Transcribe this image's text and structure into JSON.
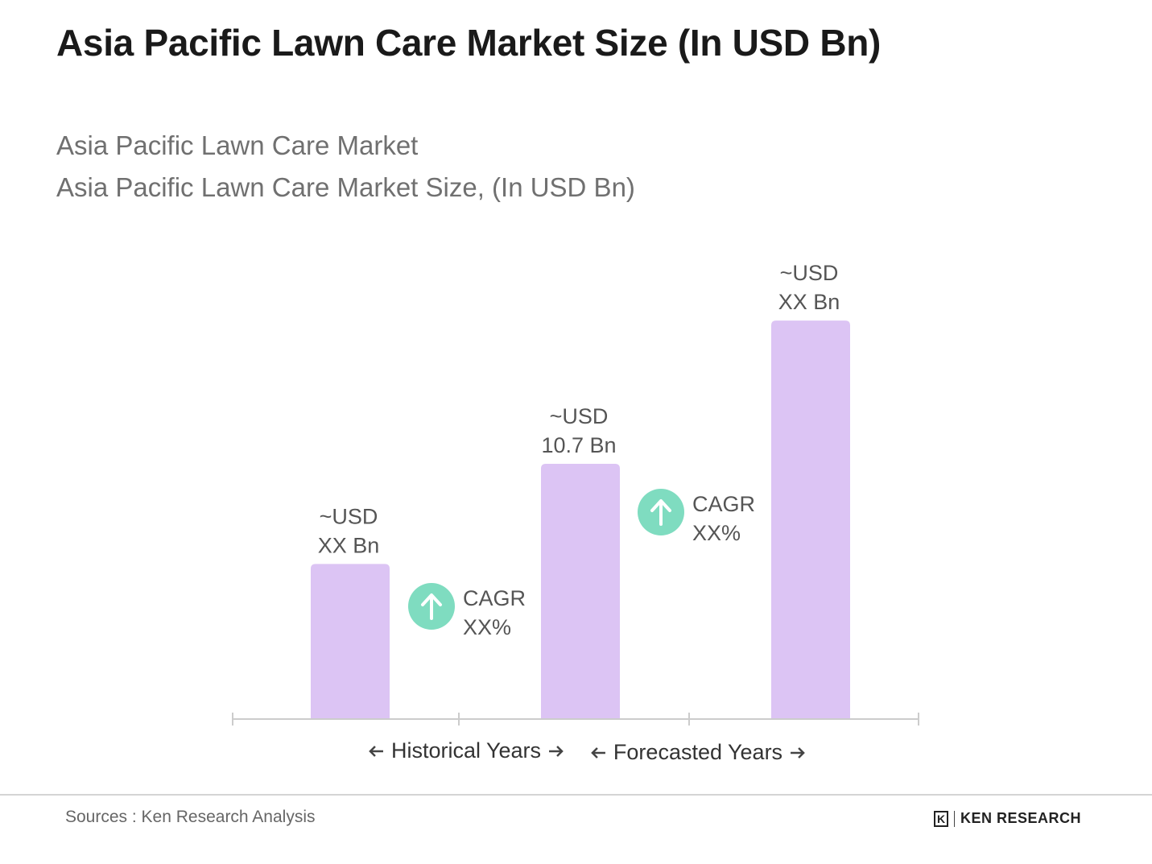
{
  "header": {
    "title": "Asia Pacific Lawn Care Market Size (In USD Bn)",
    "subtitle_line1": "Asia Pacific Lawn Care Market",
    "subtitle_line2": "Asia Pacific Lawn Care Market Size, (In USD Bn)"
  },
  "chart_data": {
    "type": "bar",
    "categories": [
      "",
      "",
      ""
    ],
    "values": [
      6.5,
      10.7,
      16.7
    ],
    "value_labels": [
      [
        "~USD",
        "XX Bn"
      ],
      [
        "~USD",
        "10.7 Bn"
      ],
      [
        "~USD",
        "XX Bn"
      ]
    ],
    "ylim": [
      0,
      19
    ],
    "grid": false,
    "cagr_annotations": [
      {
        "label": "CAGR",
        "value": "XX%",
        "between": [
          0,
          1
        ]
      },
      {
        "label": "CAGR",
        "value": "XX%",
        "between": [
          1,
          2
        ]
      }
    ],
    "periods": [
      {
        "label": "Historical Years"
      },
      {
        "label": "Forecasted Years"
      }
    ],
    "colors": {
      "bar": "#dcc4f4",
      "cagr_circle": "#7fdcc0",
      "axis": "#cccccc"
    }
  },
  "footer": {
    "source": "Sources : Ken Research Analysis",
    "brand": "KEN RESEARCH",
    "brand_mark": "K"
  }
}
